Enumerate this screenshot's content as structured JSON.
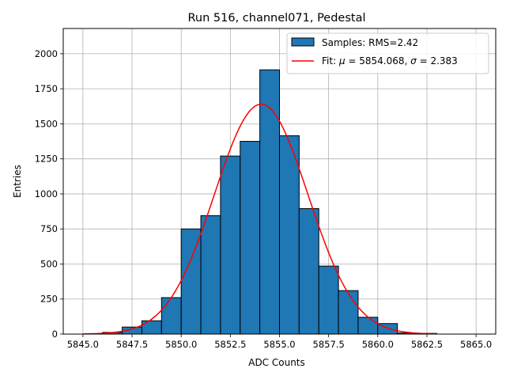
{
  "chart_data": {
    "type": "bar",
    "title": "Run 516, channel071, Pedestal",
    "xlabel": "ADC Counts",
    "ylabel": "Entries",
    "xlim": [
      5844.0,
      5866.0
    ],
    "ylim": [
      0,
      2180
    ],
    "grid": true,
    "legend_position": "top-right",
    "xticks": [
      5845.0,
      5847.5,
      5850.0,
      5852.5,
      5855.0,
      5857.5,
      5860.0,
      5862.5,
      5865.0
    ],
    "xtick_labels": [
      "5845.0",
      "5847.5",
      "5850.0",
      "5852.5",
      "5855.0",
      "5857.5",
      "5860.0",
      "5862.5",
      "5865.0"
    ],
    "yticks": [
      0,
      250,
      500,
      750,
      1000,
      1250,
      1500,
      1750,
      2000
    ],
    "ytick_labels": [
      "0",
      "250",
      "500",
      "750",
      "1000",
      "1250",
      "1500",
      "1750",
      "2000"
    ],
    "series": [
      {
        "name": "Samples: RMS=2.42",
        "kind": "histogram",
        "color": "#1f77b4",
        "edge_color": "#000000",
        "bin_edges": [
          5846,
          5847,
          5848,
          5849,
          5850,
          5851,
          5852,
          5853,
          5854,
          5855,
          5856,
          5857,
          5858,
          5859,
          5860,
          5861,
          5862,
          5863
        ],
        "values": [
          12,
          50,
          95,
          260,
          750,
          845,
          1270,
          1375,
          1885,
          1415,
          895,
          485,
          310,
          120,
          75,
          8,
          5
        ]
      },
      {
        "name": "Fit: $\\mu$ = 5854.068, $\\sigma$ = 2.383",
        "kind": "gaussian-fit",
        "color": "#ff0000",
        "mu": 5854.068,
        "sigma": 2.383,
        "amplitude": 1640,
        "x_range": [
          5845,
          5863
        ]
      }
    ],
    "legend": [
      {
        "label_prefix": "Samples: RMS=2.42"
      },
      {
        "label_prefix": "Fit: ",
        "mu_symbol": "μ",
        "mu_text": " = 5854.068, ",
        "sigma_symbol": "σ",
        "sigma_text": " = 2.383"
      }
    ]
  }
}
